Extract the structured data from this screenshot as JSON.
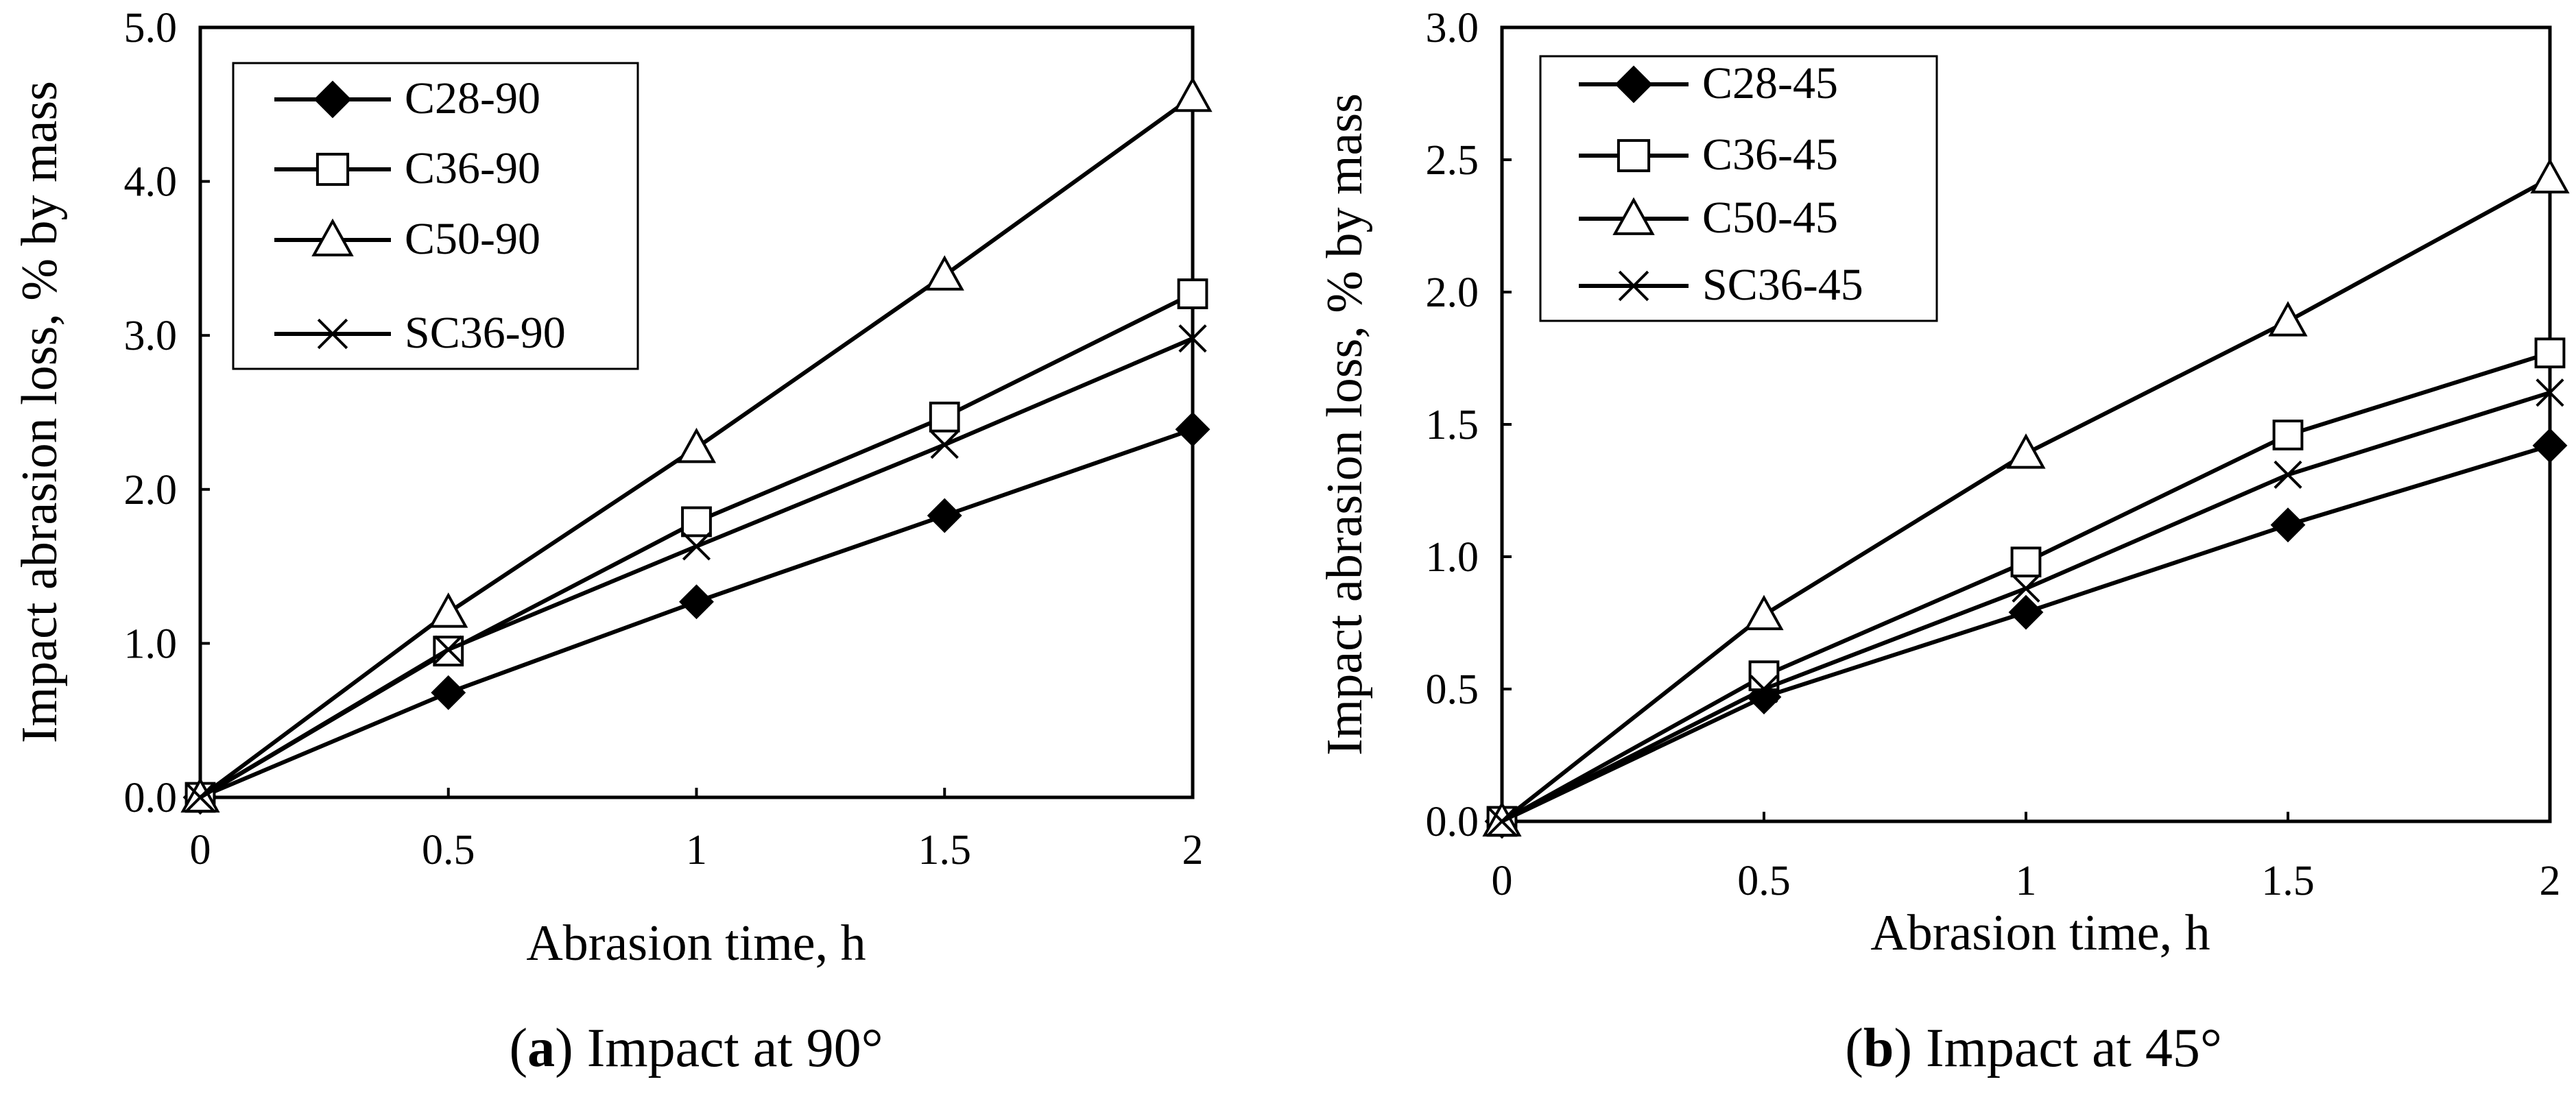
{
  "chart_data": [
    {
      "type": "line",
      "title": "",
      "xlabel": "Abrasion time, h",
      "ylabel": "Impact abrasion loss, % by mass",
      "xlim": [
        0,
        2
      ],
      "ylim": [
        0,
        5
      ],
      "x": [
        0,
        0.5,
        1,
        1.5,
        2
      ],
      "xticks": [
        "0",
        "0.5",
        "1",
        "1.5",
        "2"
      ],
      "yticks": [
        "0.0",
        "1.0",
        "2.0",
        "3.0",
        "4.0",
        "5.0"
      ],
      "ytick_values": [
        0,
        1,
        2,
        3,
        4,
        5
      ],
      "legend_position": "top-left",
      "series": [
        {
          "name": "C28-90",
          "marker": "diamond",
          "values": [
            0,
            0.68,
            1.27,
            1.83,
            2.39
          ]
        },
        {
          "name": "C36-90",
          "marker": "square",
          "values": [
            0,
            0.95,
            1.79,
            2.47,
            3.27
          ]
        },
        {
          "name": "C50-90",
          "marker": "triangle",
          "values": [
            0,
            1.2,
            2.27,
            3.39,
            4.55
          ]
        },
        {
          "name": "SC36-90",
          "marker": "cross",
          "values": [
            0,
            0.96,
            1.63,
            2.29,
            2.98
          ]
        }
      ],
      "caption_label": "a",
      "caption_text": ") Impact at 90°"
    },
    {
      "type": "line",
      "title": "",
      "xlabel": "Abrasion time, h",
      "ylabel": "Impact abrasion loss, % by mass",
      "xlim": [
        0,
        2
      ],
      "ylim": [
        0,
        3
      ],
      "x": [
        0,
        0.5,
        1,
        1.5,
        2
      ],
      "xticks": [
        "0",
        "0.5",
        "1",
        "1.5",
        "2"
      ],
      "yticks": [
        "0.0",
        "0.5",
        "1.0",
        "1.5",
        "2.0",
        "2.5",
        "3.0"
      ],
      "ytick_values": [
        0,
        0.5,
        1,
        1.5,
        2,
        2.5,
        3
      ],
      "legend_position": "top-left",
      "series": [
        {
          "name": "C28-45",
          "marker": "diamond",
          "values": [
            0,
            0.47,
            0.79,
            1.12,
            1.42
          ]
        },
        {
          "name": "C36-45",
          "marker": "square",
          "values": [
            0,
            0.55,
            0.98,
            1.46,
            1.77
          ]
        },
        {
          "name": "C50-45",
          "marker": "triangle",
          "values": [
            0,
            0.78,
            1.39,
            1.89,
            2.43
          ]
        },
        {
          "name": "SC36-45",
          "marker": "cross",
          "values": [
            0,
            0.5,
            0.88,
            1.31,
            1.62
          ]
        }
      ],
      "caption_label": "b",
      "caption_text": ") Impact at 45°"
    }
  ]
}
